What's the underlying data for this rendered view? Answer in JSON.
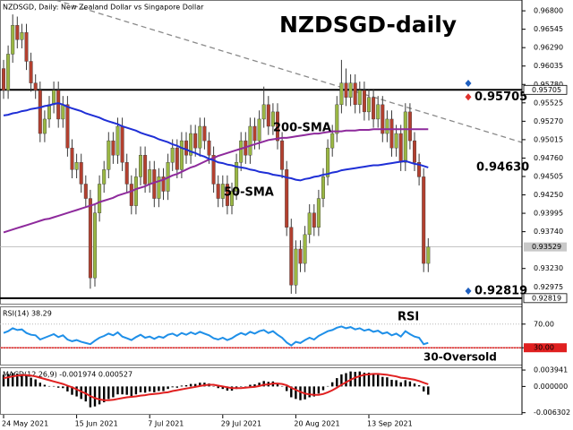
{
  "chart_data": [
    {
      "type": "candlestick",
      "header": "NZDSGD, Daily:  New Zealand Dollar vs Singapore Dollar",
      "title": "NZDSGD-daily",
      "categories": [
        "24 May 2021",
        null,
        null,
        null,
        null,
        null,
        null,
        null,
        null,
        null,
        null,
        null,
        null,
        null,
        null,
        null,
        "15 Jun 2021",
        null,
        null,
        null,
        null,
        null,
        null,
        null,
        null,
        null,
        null,
        null,
        null,
        null,
        null,
        null,
        "7 Jul 2021",
        null,
        null,
        null,
        null,
        null,
        null,
        null,
        null,
        null,
        null,
        null,
        null,
        null,
        null,
        null,
        "29 Jul 2021",
        null,
        null,
        null,
        null,
        null,
        null,
        null,
        null,
        null,
        null,
        null,
        null,
        null,
        null,
        null,
        "20 Aug 2021",
        null,
        null,
        null,
        null,
        null,
        null,
        null,
        null,
        null,
        null,
        null,
        null,
        null,
        null,
        null,
        "13 Sep 2021",
        null,
        null,
        null,
        null,
        null,
        null,
        null,
        null,
        null,
        null,
        null,
        null,
        null
      ],
      "open": [
        0.96,
        0.957,
        0.962,
        0.966,
        0.964,
        0.965,
        0.961,
        0.958,
        0.957,
        0.951,
        0.953,
        0.955,
        0.957,
        0.953,
        0.955,
        0.949,
        0.946,
        0.947,
        0.944,
        0.942,
        0.931,
        0.94,
        0.944,
        0.946,
        0.95,
        0.948,
        0.952,
        0.947,
        0.944,
        0.941,
        0.945,
        0.948,
        0.944,
        0.946,
        0.942,
        0.945,
        0.943,
        0.947,
        0.949,
        0.946,
        0.95,
        0.948,
        0.951,
        0.949,
        0.952,
        0.95,
        0.948,
        0.944,
        0.942,
        0.944,
        0.941,
        0.943,
        0.947,
        0.95,
        0.948,
        0.952,
        0.95,
        0.953,
        0.955,
        0.952,
        0.954,
        0.95,
        0.946,
        0.938,
        0.93,
        0.935,
        0.933,
        0.937,
        0.94,
        0.938,
        0.942,
        0.945,
        0.949,
        0.951,
        0.955,
        0.958,
        0.956,
        0.958,
        0.955,
        0.957,
        0.954,
        0.956,
        0.953,
        0.955,
        0.951,
        0.953,
        0.949,
        0.951,
        0.947,
        0.954,
        0.95,
        0.947,
        0.945,
        0.933
      ],
      "high": [
        0.9612,
        0.9632,
        0.9675,
        0.9672,
        0.9662,
        0.9662,
        0.9622,
        0.9592,
        0.9582,
        0.9542,
        0.9562,
        0.9582,
        0.9582,
        0.9562,
        0.9562,
        0.9502,
        0.9482,
        0.9482,
        0.9452,
        0.9432,
        0.9412,
        0.9452,
        0.9472,
        0.9512,
        0.9512,
        0.9532,
        0.9532,
        0.9482,
        0.9452,
        0.9462,
        0.9492,
        0.9492,
        0.9472,
        0.9472,
        0.9462,
        0.9462,
        0.9482,
        0.9502,
        0.9502,
        0.9512,
        0.9512,
        0.9522,
        0.9522,
        0.9532,
        0.9532,
        0.9512,
        0.9492,
        0.9452,
        0.9452,
        0.9452,
        0.9442,
        0.9482,
        0.9512,
        0.9512,
        0.9532,
        0.9532,
        0.9542,
        0.9575,
        0.9562,
        0.9552,
        0.9552,
        0.9512,
        0.9472,
        0.9392,
        0.9362,
        0.9362,
        0.9382,
        0.9412,
        0.9412,
        0.9432,
        0.9462,
        0.9502,
        0.9522,
        0.9562,
        0.9612,
        0.96,
        0.9592,
        0.9592,
        0.9582,
        0.9582,
        0.9572,
        0.9572,
        0.9562,
        0.9562,
        0.9542,
        0.9542,
        0.9522,
        0.9522,
        0.9552,
        0.9552,
        0.9512,
        0.9482,
        0.9462,
        0.9365
      ],
      "low": [
        0.9558,
        0.9558,
        0.9608,
        0.9628,
        0.9628,
        0.9598,
        0.9568,
        0.9558,
        0.9498,
        0.9498,
        0.9518,
        0.9538,
        0.9518,
        0.9518,
        0.9478,
        0.9448,
        0.9448,
        0.9428,
        0.9408,
        0.9295,
        0.9298,
        0.9388,
        0.9428,
        0.9448,
        0.9468,
        0.9468,
        0.9458,
        0.9428,
        0.9398,
        0.9398,
        0.9438,
        0.9428,
        0.9428,
        0.9408,
        0.9408,
        0.9418,
        0.9418,
        0.9458,
        0.9448,
        0.9448,
        0.9468,
        0.9468,
        0.9478,
        0.9478,
        0.9488,
        0.9468,
        0.9428,
        0.9408,
        0.9408,
        0.9398,
        0.9398,
        0.9418,
        0.9458,
        0.9468,
        0.9468,
        0.9488,
        0.9488,
        0.9518,
        0.9508,
        0.9508,
        0.9488,
        0.9448,
        0.9368,
        0.9288,
        0.9288,
        0.9318,
        0.9318,
        0.9358,
        0.9368,
        0.9368,
        0.9408,
        0.9438,
        0.9478,
        0.9498,
        0.9538,
        0.9548,
        0.9548,
        0.9538,
        0.9538,
        0.9528,
        0.9528,
        0.9518,
        0.9518,
        0.9498,
        0.9498,
        0.9478,
        0.9478,
        0.9458,
        0.9458,
        0.9488,
        0.9458,
        0.9438,
        0.9318,
        0.9318
      ],
      "close": [
        0.957,
        0.962,
        0.966,
        0.964,
        0.965,
        0.961,
        0.958,
        0.957,
        0.951,
        0.953,
        0.955,
        0.957,
        0.953,
        0.955,
        0.949,
        0.946,
        0.947,
        0.944,
        0.942,
        0.931,
        0.94,
        0.944,
        0.946,
        0.95,
        0.948,
        0.952,
        0.947,
        0.944,
        0.941,
        0.945,
        0.948,
        0.944,
        0.946,
        0.942,
        0.945,
        0.943,
        0.947,
        0.949,
        0.946,
        0.95,
        0.948,
        0.951,
        0.949,
        0.952,
        0.95,
        0.948,
        0.944,
        0.942,
        0.944,
        0.941,
        0.943,
        0.947,
        0.95,
        0.948,
        0.952,
        0.95,
        0.953,
        0.955,
        0.952,
        0.954,
        0.95,
        0.946,
        0.938,
        0.93,
        0.935,
        0.933,
        0.937,
        0.94,
        0.938,
        0.942,
        0.945,
        0.949,
        0.951,
        0.955,
        0.958,
        0.956,
        0.958,
        0.955,
        0.957,
        0.954,
        0.956,
        0.953,
        0.955,
        0.951,
        0.953,
        0.949,
        0.951,
        0.947,
        0.954,
        0.95,
        0.947,
        0.945,
        0.933,
        0.93529
      ],
      "up_color": "#9ab743",
      "down_color": "#b3402f",
      "series": [
        {
          "name": "200-SMA",
          "color": "#8e2a9c",
          "values": [
            0.9373,
            0.9375,
            0.9377,
            0.9379,
            0.9381,
            0.9383,
            0.9385,
            0.9387,
            0.9389,
            0.9391,
            0.9392,
            0.9394,
            0.9396,
            0.9398,
            0.94,
            0.9402,
            0.9404,
            0.9406,
            0.9408,
            0.941,
            0.9412,
            0.9415,
            0.9417,
            0.9419,
            0.9421,
            0.9424,
            0.9426,
            0.9428,
            0.943,
            0.9433,
            0.9435,
            0.9437,
            0.944,
            0.9442,
            0.9444,
            0.9446,
            0.9449,
            0.9452,
            0.9454,
            0.9457,
            0.946,
            0.9463,
            0.9465,
            0.9468,
            0.9471,
            0.9474,
            0.9476,
            0.9479,
            0.9481,
            0.9483,
            0.9485,
            0.9487,
            0.9489,
            0.9491,
            0.9493,
            0.9495,
            0.9497,
            0.9499,
            0.9501,
            0.9502,
            0.9503,
            0.9504,
            0.9504,
            0.9505,
            0.9506,
            0.9507,
            0.9508,
            0.9509,
            0.951,
            0.951,
            0.9511,
            0.9512,
            0.9513,
            0.9513,
            0.9513,
            0.9514,
            0.9514,
            0.9514,
            0.9515,
            0.9515,
            0.9515,
            0.9516,
            0.9516,
            0.9516,
            0.9516,
            0.9516,
            0.9516,
            0.9516,
            0.9516,
            0.9516,
            0.9516,
            0.9516,
            0.9516,
            0.9516
          ]
        },
        {
          "name": "50-SMA",
          "color": "#1f2fd6",
          "values": [
            0.9535,
            0.9536,
            0.9538,
            0.9539,
            0.9541,
            0.9542,
            0.9544,
            0.9545,
            0.9546,
            0.9548,
            0.9549,
            0.9551,
            0.9552,
            0.955,
            0.9547,
            0.9545,
            0.9543,
            0.9541,
            0.9538,
            0.9536,
            0.9534,
            0.9532,
            0.9529,
            0.9527,
            0.9525,
            0.9523,
            0.952,
            0.9518,
            0.9516,
            0.9514,
            0.9511,
            0.9509,
            0.9507,
            0.9505,
            0.9502,
            0.95,
            0.9498,
            0.9495,
            0.9493,
            0.949,
            0.9488,
            0.9485,
            0.9483,
            0.948,
            0.9478,
            0.9475,
            0.9473,
            0.947,
            0.9469,
            0.9467,
            0.9466,
            0.9464,
            0.9463,
            0.9462,
            0.946,
            0.9459,
            0.9457,
            0.9456,
            0.9455,
            0.9453,
            0.9452,
            0.9451,
            0.9449,
            0.9448,
            0.9446,
            0.9445,
            0.9447,
            0.9448,
            0.945,
            0.9451,
            0.9453,
            0.9454,
            0.9456,
            0.9457,
            0.9459,
            0.946,
            0.9461,
            0.9462,
            0.9463,
            0.9464,
            0.9465,
            0.9466,
            0.9466,
            0.9467,
            0.9468,
            0.9469,
            0.947,
            0.9471,
            0.9472,
            0.947,
            0.9468,
            0.9467,
            0.9465,
            0.9463
          ]
        }
      ],
      "levels": [
        {
          "value": 0.95705,
          "label": "0.95705",
          "color": "#e0312c"
        },
        {
          "value": 0.92819,
          "label": "0.92819",
          "color": "#1f5fbf"
        }
      ],
      "annotations": [
        {
          "text": "0.94630",
          "value": 0.9463,
          "color": "#1f3fd0"
        }
      ],
      "current_price": {
        "value": 0.93529,
        "label": "0.93529"
      },
      "ylim": [
        0.9273,
        0.9695
      ],
      "yticks": [
        {
          "value": 0.968,
          "label": "0.96800"
        },
        0.96545,
        {
          "value": 0.9629,
          "label": "0.96290"
        },
        0.96035,
        {
          "value": 0.9578,
          "label": "0.95780"
        },
        0.95525,
        {
          "value": 0.9527,
          "label": "0.95270"
        },
        0.95015,
        {
          "value": 0.9476,
          "label": "0.94760"
        },
        0.94505,
        {
          "value": 0.9425,
          "label": "0.94250"
        },
        0.93995,
        {
          "value": 0.9374,
          "label": "0.93740"
        },
        {
          "value": 0.9323,
          "label": "0.93230"
        },
        0.92975
      ]
    },
    {
      "type": "line",
      "header": "RSI(14) 38.29",
      "series": [
        {
          "name": "RSI",
          "color": "#1e8fe8",
          "values": [
            55,
            58,
            63,
            60,
            61,
            55,
            52,
            51,
            44,
            47,
            50,
            53,
            48,
            51,
            44,
            41,
            43,
            40,
            38,
            36,
            42,
            47,
            50,
            54,
            51,
            56,
            49,
            46,
            43,
            48,
            52,
            47,
            49,
            45,
            49,
            47,
            52,
            54,
            50,
            55,
            52,
            56,
            53,
            57,
            54,
            51,
            46,
            44,
            47,
            43,
            46,
            51,
            55,
            52,
            57,
            54,
            58,
            60,
            55,
            58,
            52,
            47,
            39,
            34,
            40,
            38,
            43,
            47,
            44,
            50,
            54,
            58,
            60,
            64,
            66,
            63,
            65,
            61,
            63,
            59,
            61,
            57,
            59,
            54,
            56,
            51,
            54,
            49,
            58,
            53,
            49,
            47,
            36,
            38.29
          ]
        }
      ],
      "levels": [
        {
          "value": 30,
          "label": "30-Oversold",
          "color": "#e02020"
        }
      ],
      "ylim": [
        0,
        100
      ],
      "yticks": [
        {
          "value": 70,
          "label": "70.00"
        },
        {
          "value": 30,
          "label": "30.00"
        }
      ]
    },
    {
      "type": "bar",
      "header": "MACD(12,26,9) -0.001974 0.000527",
      "series": [
        {
          "type": "bar",
          "color": "#000000",
          "values": [
            0.0028,
            0.003,
            0.0032,
            0.0031,
            0.003,
            0.0026,
            0.0021,
            0.0017,
            0.0009,
            0.0004,
            0.0001,
            0.0001,
            -0.0003,
            -0.0004,
            -0.0012,
            -0.002,
            -0.0024,
            -0.003,
            -0.0036,
            -0.005,
            -0.0048,
            -0.0043,
            -0.0038,
            -0.003,
            -0.0026,
            -0.0019,
            -0.0019,
            -0.002,
            -0.0023,
            -0.0019,
            -0.0014,
            -0.0015,
            -0.0012,
            -0.0014,
            -0.0011,
            -0.0011,
            -0.0006,
            -0.0002,
            -0.0003,
            0.0002,
            0.0003,
            0.0006,
            0.0006,
            0.0009,
            0.0009,
            0.0007,
            0.0001,
            -0.0004,
            -0.0006,
            -0.001,
            -0.001,
            -0.0006,
            -0.0001,
            -0.0001,
            0.0004,
            0.0005,
            0.0009,
            0.0013,
            0.0011,
            0.0012,
            0.0007,
            0.0001,
            -0.0011,
            -0.0026,
            -0.003,
            -0.0033,
            -0.0031,
            -0.0026,
            -0.0024,
            -0.0017,
            -0.0009,
            0.0001,
            0.001,
            0.002,
            0.0029,
            0.0032,
            0.0036,
            0.0035,
            0.0036,
            0.0033,
            0.0033,
            0.0029,
            0.0028,
            0.0023,
            0.0022,
            0.0016,
            0.0015,
            0.001,
            0.0015,
            0.0012,
            0.0007,
            0.0003,
            -0.0012,
            -0.001974
          ]
        },
        {
          "type": "line",
          "color": "#e02020",
          "values": [
            0.002,
            0.0022,
            0.0024,
            0.0026,
            0.0027,
            0.0027,
            0.0026,
            0.0024,
            0.0021,
            0.0018,
            0.0015,
            0.0012,
            0.0009,
            0.0006,
            0.0002,
            -0.0002,
            -0.0007,
            -0.0012,
            -0.0017,
            -0.0023,
            -0.0028,
            -0.0031,
            -0.0033,
            -0.0033,
            -0.0032,
            -0.003,
            -0.0028,
            -0.0026,
            -0.0025,
            -0.0024,
            -0.0022,
            -0.0021,
            -0.0019,
            -0.0018,
            -0.0017,
            -0.0015,
            -0.0014,
            -0.0011,
            -0.0009,
            -0.0007,
            -0.0005,
            -0.0003,
            -0.0001,
            0.0001,
            0.0003,
            0.0004,
            0.0004,
            0.0002,
            0.0,
            -0.0002,
            -0.0004,
            -0.0004,
            -0.0004,
            -0.0003,
            -0.0002,
            -0.0001,
            0.0001,
            0.0004,
            0.0005,
            0.0007,
            0.0007,
            0.0006,
            0.0003,
            -0.0003,
            -0.0008,
            -0.0013,
            -0.0017,
            -0.0019,
            -0.002,
            -0.002,
            -0.0018,
            -0.0014,
            -0.0009,
            -0.0003,
            0.0004,
            0.001,
            0.0016,
            0.0021,
            0.0025,
            0.0028,
            0.0029,
            0.003,
            0.003,
            0.0029,
            0.0028,
            0.0026,
            0.0024,
            0.0021,
            0.002,
            0.0018,
            0.0016,
            0.0013,
            0.0009,
            0.000527
          ]
        }
      ],
      "ylim": [
        -0.0068,
        0.0046
      ],
      "yticks": [
        0.003941,
        {
          "value": 0,
          "label": "0.000000"
        },
        -0.006302
      ]
    }
  ]
}
